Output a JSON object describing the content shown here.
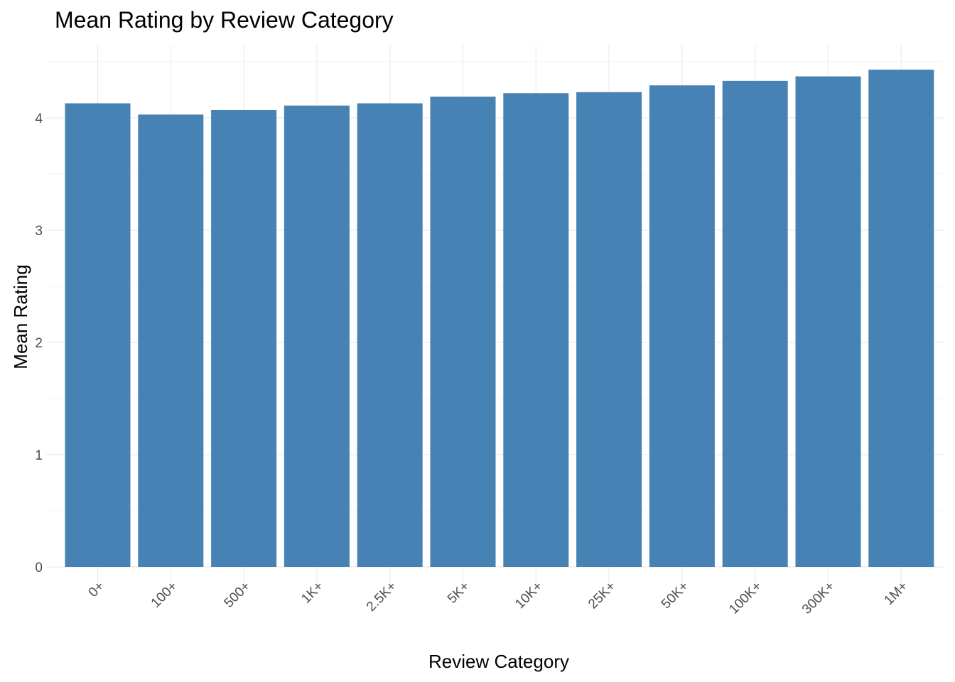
{
  "chart_data": {
    "type": "bar",
    "title": "Mean Rating by Review Category",
    "xlabel": "Review Category",
    "ylabel": "Mean Rating",
    "categories": [
      "0+",
      "100+",
      "500+",
      "1K+",
      "2.5K+",
      "5K+",
      "10K+",
      "25K+",
      "50K+",
      "100K+",
      "300K+",
      "1M+"
    ],
    "values": [
      4.13,
      4.03,
      4.07,
      4.11,
      4.13,
      4.19,
      4.22,
      4.23,
      4.29,
      4.33,
      4.37,
      4.43
    ],
    "yticks": [
      0,
      1,
      2,
      3,
      4
    ],
    "ylim": [
      0,
      4.65
    ],
    "grid": true,
    "legend": "none",
    "bar_color": "#4682B4",
    "grid_color": "#ebebeb"
  }
}
